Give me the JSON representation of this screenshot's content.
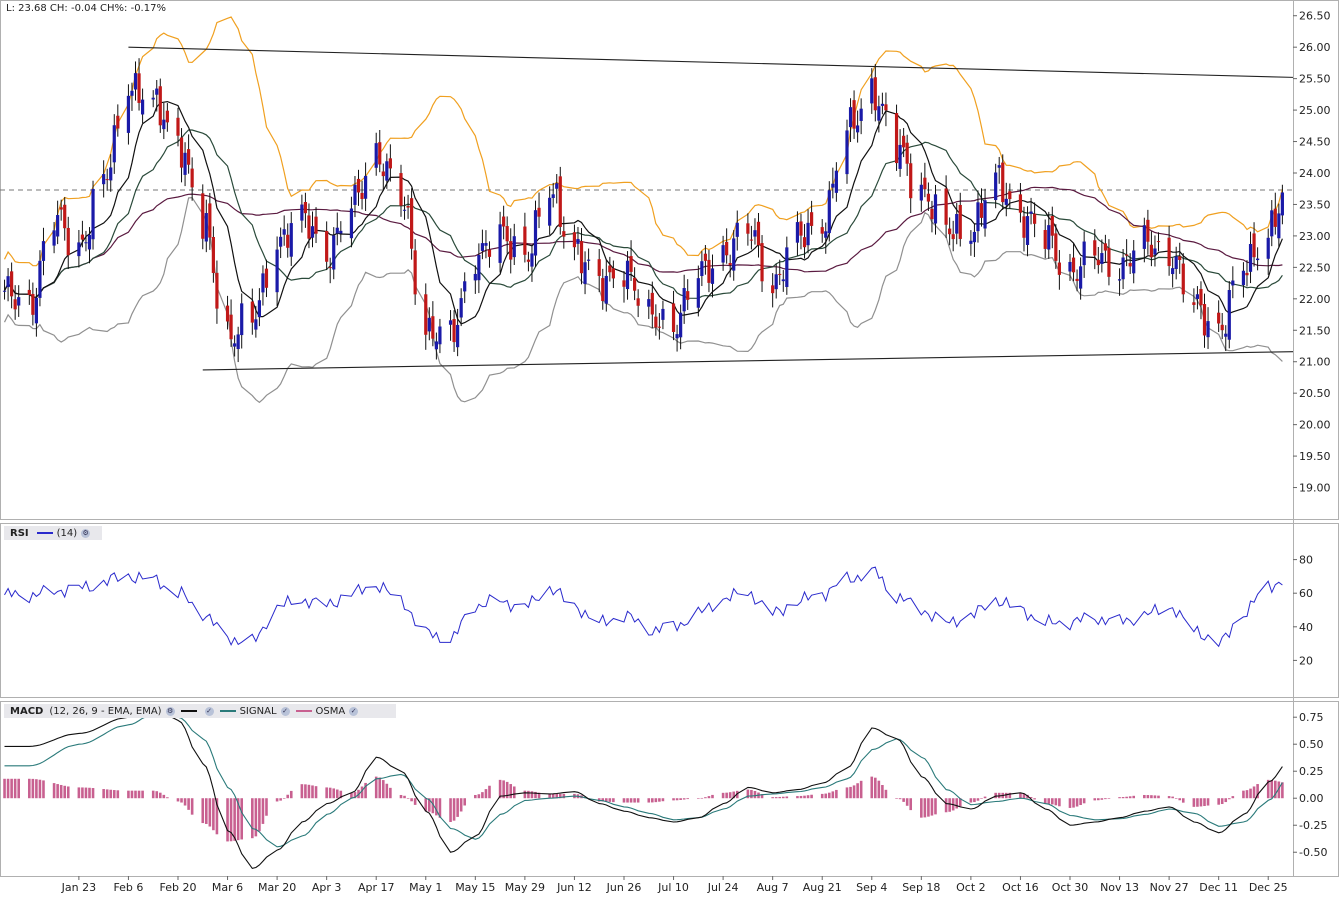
{
  "header": {
    "readout": "L: 23.68 CH: -0.04 CH%: -0.17%"
  },
  "x_labels": [
    "Jan 23",
    "Feb 6",
    "Feb 20",
    "Mar 6",
    "Mar 20",
    "Apr 3",
    "Apr 17",
    "May 1",
    "May 15",
    "May 29",
    "Jun 12",
    "Jun 26",
    "Jul 10",
    "Jul 24",
    "Aug 7",
    "Aug 21",
    "Sep 4",
    "Sep 18",
    "Oct 2",
    "Oct 16",
    "Oct 30",
    "Nov 13",
    "Nov 27",
    "Dec 11",
    "Dec 25"
  ],
  "colors": {
    "up": "#1a1aa8",
    "down": "#c01818",
    "upper_band": "#f0a020",
    "lower_band": "#909090",
    "ma_short": "#101010",
    "ma_mid": "#2a4a3a",
    "ma_long": "#5a1a40",
    "rsi": "#2a2acc",
    "macd": "#101010",
    "signal": "#2a7a7a",
    "osma": "#c86090"
  },
  "rsi_legend": {
    "key": "RSI",
    "param": "(14)"
  },
  "macd_legend": {
    "key": "MACD",
    "param": "(12, 26, 9 - EMA, EMA)",
    "signal": "SIGNAL",
    "osma": "OSMA"
  },
  "chart_data": [
    {
      "type": "candlestick",
      "title": "",
      "ylim": [
        18.5,
        26.75
      ],
      "yticks": [
        "19.00",
        "19.50",
        "20.00",
        "20.50",
        "21.00",
        "21.50",
        "22.00",
        "22.50",
        "23.00",
        "23.50",
        "24.00",
        "24.50",
        "25.00",
        "25.50",
        "26.00",
        "26.50"
      ],
      "last_close": 23.68,
      "reference_line": 23.73,
      "trendlines": [
        {
          "from": [
            "Feb 6",
            26.0
          ],
          "to": [
            "Dec 31",
            25.52
          ]
        },
        {
          "from": [
            "Feb 27",
            20.87
          ],
          "to": [
            "Dec 31",
            21.16
          ]
        }
      ],
      "close_keypoints": [
        [
          "Jan 9",
          22.0
        ],
        [
          "Jan 16",
          23.2
        ],
        [
          "Jan 23",
          22.9
        ],
        [
          "Jan 30",
          23.8
        ],
        [
          "Feb 6",
          25.5
        ],
        [
          "Feb 13",
          25.0
        ],
        [
          "Feb 20",
          24.6
        ],
        [
          "Feb 27",
          23.1
        ],
        [
          "Mar 6",
          21.5
        ],
        [
          "Mar 13",
          21.6
        ],
        [
          "Mar 20",
          23.0
        ],
        [
          "Mar 27",
          23.2
        ],
        [
          "Apr 3",
          22.8
        ],
        [
          "Apr 10",
          23.4
        ],
        [
          "Apr 17",
          24.4
        ],
        [
          "Apr 24",
          23.5
        ],
        [
          "May 1",
          21.6
        ],
        [
          "May 8",
          21.3
        ],
        [
          "May 15",
          22.8
        ],
        [
          "May 22",
          22.9
        ],
        [
          "May 29",
          22.8
        ],
        [
          "Jun 5",
          23.6
        ],
        [
          "Jun 12",
          22.9
        ],
        [
          "Jun 19",
          22.1
        ],
        [
          "Jun 26",
          22.6
        ],
        [
          "Jul 3",
          21.6
        ],
        [
          "Jul 10",
          21.7
        ],
        [
          "Jul 17",
          22.3
        ],
        [
          "Jul 24",
          22.8
        ],
        [
          "Jul 31",
          23.0
        ],
        [
          "Aug 7",
          22.3
        ],
        [
          "Aug 14",
          22.9
        ],
        [
          "Aug 21",
          23.3
        ],
        [
          "Aug 28",
          24.6
        ],
        [
          "Sep 4",
          25.4
        ],
        [
          "Sep 11",
          24.3
        ],
        [
          "Sep 18",
          23.8
        ],
        [
          "Sep 25",
          23.0
        ],
        [
          "Oct 2",
          23.2
        ],
        [
          "Oct 9",
          23.8
        ],
        [
          "Oct 16",
          23.4
        ],
        [
          "Oct 23",
          22.9
        ],
        [
          "Oct 30",
          22.5
        ],
        [
          "Nov 6",
          22.6
        ],
        [
          "Nov 13",
          22.6
        ],
        [
          "Nov 20",
          22.8
        ],
        [
          "Nov 27",
          22.8
        ],
        [
          "Dec 4",
          21.8
        ],
        [
          "Dec 11",
          21.6
        ],
        [
          "Dec 18",
          22.4
        ],
        [
          "Dec 25",
          23.2
        ],
        [
          "Dec 31",
          23.68
        ]
      ],
      "series": [
        {
          "name": "Price",
          "role": "candles"
        },
        {
          "name": "",
          "role": "upper band"
        },
        {
          "name": "",
          "role": "lower band"
        },
        {
          "name": "",
          "role": "moving averages"
        }
      ]
    },
    {
      "type": "line",
      "title": "RSI",
      "ylim": [
        0,
        100
      ],
      "yticks": [
        "20",
        "40",
        "60",
        "80"
      ],
      "keypoints": [
        [
          "Jan 9",
          59
        ],
        [
          "Jan 23",
          63
        ],
        [
          "Feb 6",
          70
        ],
        [
          "Feb 13",
          68
        ],
        [
          "Feb 20",
          60
        ],
        [
          "Feb 27",
          48
        ],
        [
          "Mar 6",
          33
        ],
        [
          "Mar 13",
          31
        ],
        [
          "Mar 20",
          52
        ],
        [
          "Mar 27",
          56
        ],
        [
          "Apr 3",
          53
        ],
        [
          "Apr 10",
          60
        ],
        [
          "Apr 17",
          65
        ],
        [
          "Apr 24",
          55
        ],
        [
          "May 1",
          36
        ],
        [
          "May 8",
          33
        ],
        [
          "May 15",
          53
        ],
        [
          "May 22",
          55
        ],
        [
          "May 29",
          52
        ],
        [
          "Jun 5",
          63
        ],
        [
          "Jun 12",
          52
        ],
        [
          "Jun 19",
          42
        ],
        [
          "Jun 26",
          47
        ],
        [
          "Jul 3",
          38
        ],
        [
          "Jul 10",
          40
        ],
        [
          "Jul 17",
          48
        ],
        [
          "Jul 24",
          57
        ],
        [
          "Jul 31",
          60
        ],
        [
          "Aug 7",
          48
        ],
        [
          "Aug 14",
          55
        ],
        [
          "Aug 21",
          60
        ],
        [
          "Aug 28",
          68
        ],
        [
          "Sep 4",
          73
        ],
        [
          "Sep 11",
          58
        ],
        [
          "Sep 18",
          50
        ],
        [
          "Sep 25",
          42
        ],
        [
          "Oct 2",
          47
        ],
        [
          "Oct 9",
          56
        ],
        [
          "Oct 16",
          50
        ],
        [
          "Oct 23",
          42
        ],
        [
          "Oct 30",
          43
        ],
        [
          "Nov 6",
          45
        ],
        [
          "Nov 13",
          43
        ],
        [
          "Nov 20",
          47
        ],
        [
          "Nov 27",
          52
        ],
        [
          "Dec 4",
          38
        ],
        [
          "Dec 11",
          30
        ],
        [
          "Dec 18",
          48
        ],
        [
          "Dec 25",
          65
        ],
        [
          "Dec 31",
          67
        ]
      ]
    },
    {
      "type": "line",
      "title": "MACD",
      "ylim": [
        -0.72,
        0.9
      ],
      "yticks": [
        "-0.50",
        "-0.25",
        "0.00",
        "0.25",
        "0.50",
        "0.75"
      ],
      "macd_keypoints": [
        [
          "Jan 9",
          0.48
        ],
        [
          "Jan 23",
          0.6
        ],
        [
          "Feb 6",
          0.75
        ],
        [
          "Feb 13",
          0.85
        ],
        [
          "Feb 20",
          0.72
        ],
        [
          "Feb 27",
          0.32
        ],
        [
          "Mar 6",
          -0.3
        ],
        [
          "Mar 13",
          -0.65
        ],
        [
          "Mar 20",
          -0.48
        ],
        [
          "Mar 27",
          -0.22
        ],
        [
          "Apr 3",
          -0.05
        ],
        [
          "Apr 10",
          0.05
        ],
        [
          "Apr 17",
          0.38
        ],
        [
          "Apr 24",
          0.25
        ],
        [
          "May 1",
          -0.12
        ],
        [
          "May 8",
          -0.5
        ],
        [
          "May 15",
          -0.35
        ],
        [
          "May 22",
          0.02
        ],
        [
          "May 29",
          0.05
        ],
        [
          "Jun 5",
          0.04
        ],
        [
          "Jun 12",
          0.06
        ],
        [
          "Jun 19",
          -0.05
        ],
        [
          "Jun 26",
          -0.12
        ],
        [
          "Jul 3",
          -0.18
        ],
        [
          "Jul 10",
          -0.22
        ],
        [
          "Jul 17",
          -0.18
        ],
        [
          "Jul 24",
          -0.05
        ],
        [
          "Jul 31",
          0.1
        ],
        [
          "Aug 7",
          0.05
        ],
        [
          "Aug 14",
          0.08
        ],
        [
          "Aug 21",
          0.14
        ],
        [
          "Aug 28",
          0.28
        ],
        [
          "Sep 4",
          0.65
        ],
        [
          "Sep 11",
          0.55
        ],
        [
          "Sep 18",
          0.2
        ],
        [
          "Sep 25",
          -0.05
        ],
        [
          "Oct 2",
          -0.1
        ],
        [
          "Oct 9",
          0.02
        ],
        [
          "Oct 16",
          0.05
        ],
        [
          "Oct 23",
          -0.1
        ],
        [
          "Oct 30",
          -0.25
        ],
        [
          "Nov 6",
          -0.22
        ],
        [
          "Nov 13",
          -0.18
        ],
        [
          "Nov 20",
          -0.12
        ],
        [
          "Nov 27",
          -0.08
        ],
        [
          "Dec 4",
          -0.22
        ],
        [
          "Dec 11",
          -0.32
        ],
        [
          "Dec 18",
          -0.15
        ],
        [
          "Dec 25",
          0.15
        ],
        [
          "Dec 31",
          0.34
        ]
      ],
      "signal_keypoints": [
        [
          "Jan 9",
          0.3
        ],
        [
          "Jan 23",
          0.5
        ],
        [
          "Feb 6",
          0.68
        ],
        [
          "Feb 13",
          0.78
        ],
        [
          "Feb 20",
          0.75
        ],
        [
          "Feb 27",
          0.55
        ],
        [
          "Mar 6",
          0.1
        ],
        [
          "Mar 13",
          -0.28
        ],
        [
          "Mar 20",
          -0.45
        ],
        [
          "Mar 27",
          -0.35
        ],
        [
          "Apr 3",
          -0.15
        ],
        [
          "Apr 10",
          0.0
        ],
        [
          "Apr 17",
          0.18
        ],
        [
          "Apr 24",
          0.22
        ],
        [
          "May 1",
          0.0
        ],
        [
          "May 8",
          -0.28
        ],
        [
          "May 15",
          -0.38
        ],
        [
          "May 22",
          -0.15
        ],
        [
          "May 29",
          -0.02
        ],
        [
          "Jun 5",
          0.0
        ],
        [
          "Jun 12",
          0.02
        ],
        [
          "Jun 19",
          -0.02
        ],
        [
          "Jun 26",
          -0.08
        ],
        [
          "Jul 3",
          -0.14
        ],
        [
          "Jul 10",
          -0.2
        ],
        [
          "Jul 17",
          -0.18
        ],
        [
          "Jul 24",
          -0.1
        ],
        [
          "Jul 31",
          0.02
        ],
        [
          "Aug 7",
          0.04
        ],
        [
          "Aug 14",
          0.06
        ],
        [
          "Aug 21",
          0.1
        ],
        [
          "Aug 28",
          0.18
        ],
        [
          "Sep 4",
          0.45
        ],
        [
          "Sep 11",
          0.55
        ],
        [
          "Sep 18",
          0.38
        ],
        [
          "Sep 25",
          0.08
        ],
        [
          "Oct 2",
          -0.06
        ],
        [
          "Oct 9",
          -0.03
        ],
        [
          "Oct 16",
          0.0
        ],
        [
          "Oct 23",
          -0.05
        ],
        [
          "Oct 30",
          -0.16
        ],
        [
          "Nov 6",
          -0.2
        ],
        [
          "Nov 13",
          -0.19
        ],
        [
          "Nov 20",
          -0.15
        ],
        [
          "Nov 27",
          -0.1
        ],
        [
          "Dec 4",
          -0.14
        ],
        [
          "Dec 11",
          -0.26
        ],
        [
          "Dec 18",
          -0.22
        ],
        [
          "Dec 25",
          -0.02
        ],
        [
          "Dec 31",
          0.2
        ]
      ]
    }
  ]
}
